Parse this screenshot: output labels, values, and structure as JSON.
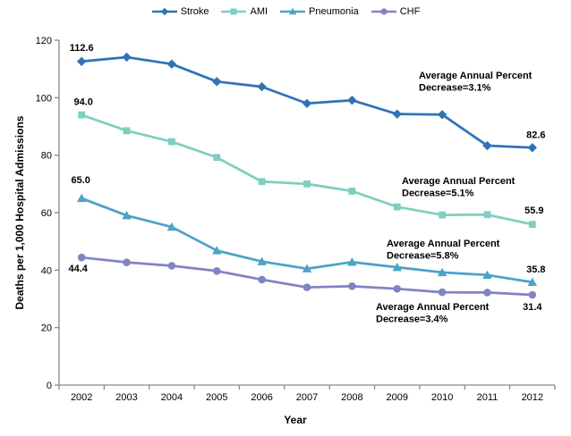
{
  "chart_data": {
    "type": "line",
    "title": "",
    "xlabel": "Year",
    "ylabel": "Deaths per 1,000 Hospital Admissions",
    "ylim": [
      0,
      120
    ],
    "yticks": [
      0,
      20,
      40,
      60,
      80,
      100,
      120
    ],
    "grid": false,
    "legend_position": "top-center",
    "axis_color": "#898989",
    "categories": [
      "2002",
      "2003",
      "2004",
      "2005",
      "2006",
      "2007",
      "2008",
      "2009",
      "2010",
      "2011",
      "2012"
    ],
    "series": [
      {
        "name": "Stroke",
        "marker": "diamond",
        "color": "#2E74B6",
        "values": [
          112.6,
          114.1,
          111.7,
          105.6,
          103.8,
          98.0,
          99.1,
          94.3,
          94.1,
          83.3,
          82.6
        ],
        "first_label": "112.6",
        "last_label": "82.6",
        "annotation_lines": [
          "Average Annual Percent",
          "Decrease=3.1%"
        ]
      },
      {
        "name": "AMI",
        "marker": "square",
        "color": "#7ECFC0",
        "values": [
          94.0,
          88.5,
          84.7,
          79.2,
          70.8,
          70.0,
          67.5,
          62.0,
          59.2,
          59.3,
          55.9
        ],
        "first_label": "94.0",
        "last_label": "55.9",
        "annotation_lines": [
          "Average Annual Percent",
          "Decrease=5.1%"
        ]
      },
      {
        "name": "Pneumonia",
        "marker": "triangle",
        "color": "#4AA3C8",
        "values": [
          65.0,
          59.0,
          55.0,
          46.8,
          43.0,
          40.5,
          42.8,
          41.0,
          39.2,
          38.3,
          35.8
        ],
        "first_label": "65.0",
        "last_label": "35.8",
        "annotation_lines": [
          "Average Annual Percent",
          "Decrease=5.8%"
        ]
      },
      {
        "name": "CHF",
        "marker": "circle",
        "color": "#8184C3",
        "values": [
          44.4,
          42.7,
          41.5,
          39.7,
          36.7,
          34.0,
          34.4,
          33.5,
          32.3,
          32.2,
          31.4
        ],
        "first_label": "44.4",
        "last_label": "31.4",
        "annotation_lines": [
          "Average Annual Percent",
          "Decrease=3.4%"
        ]
      }
    ]
  }
}
